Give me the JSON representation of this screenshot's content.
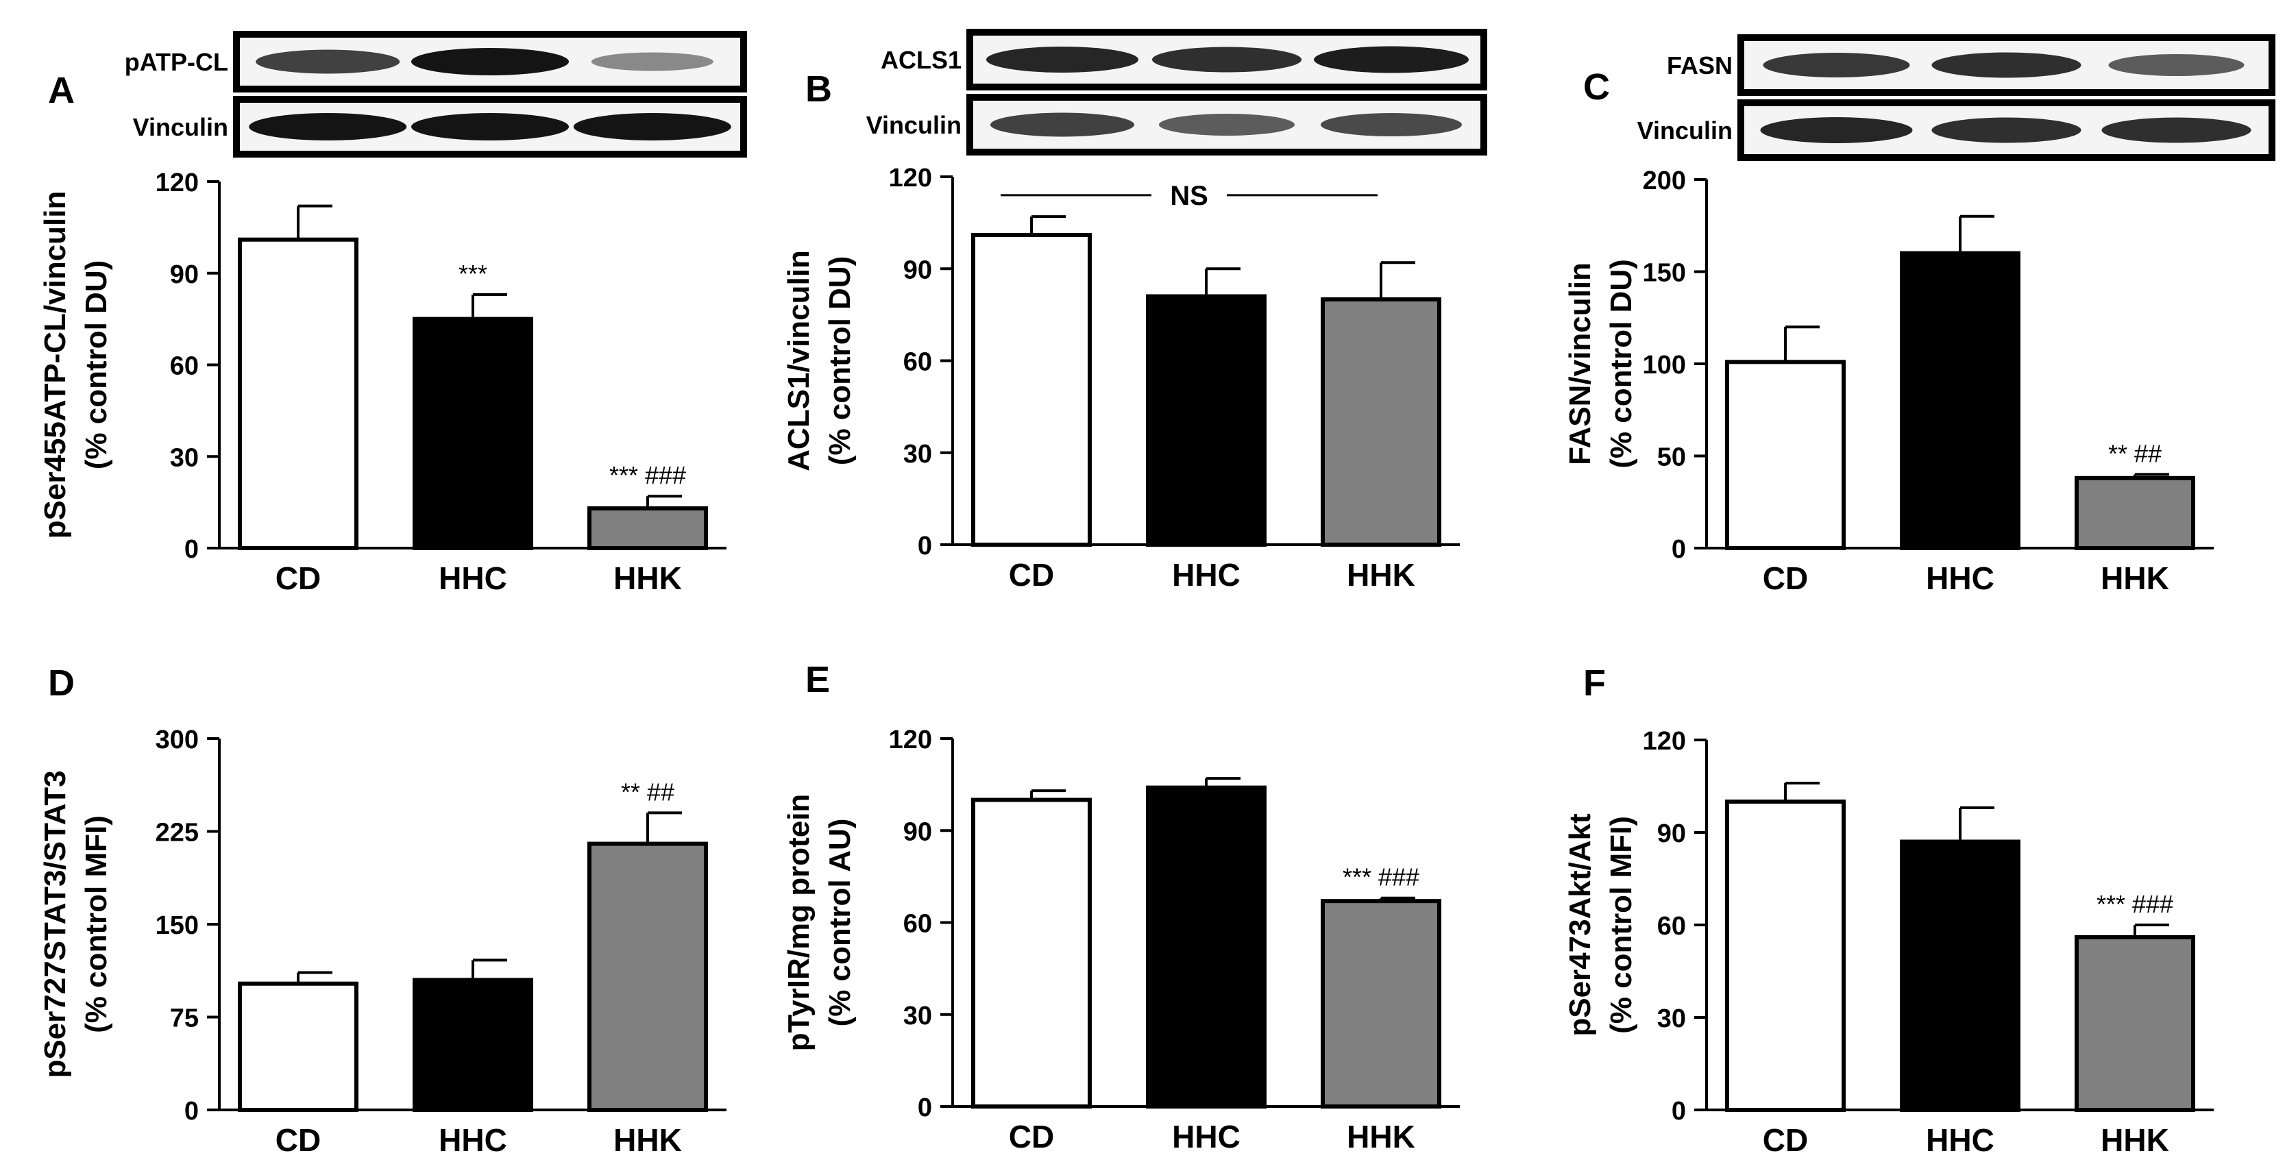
{
  "colors": {
    "CD": "#ffffff",
    "HHC": "#000000",
    "HHK": "#808080",
    "axis": "#000000"
  },
  "chart_data": [
    {
      "panel": "A",
      "type": "bar",
      "categories": [
        "CD",
        "HHC",
        "HHK"
      ],
      "values": [
        101,
        75,
        13
      ],
      "errors": [
        11,
        8,
        4
      ],
      "annotations": [
        "",
        "***",
        "*** ###"
      ],
      "ylabel_lines": [
        "pSer455ATP-CL/vinculin",
        "(% control DU)"
      ],
      "yticks": [
        0,
        30,
        60,
        90,
        120
      ],
      "ylim": [
        0,
        120
      ],
      "blots": [
        {
          "label": "pATP-CL",
          "bands": [
            0.75,
            1.0,
            0.35
          ]
        },
        {
          "label": "Vinculin",
          "bands": [
            1.0,
            1.0,
            1.0
          ]
        }
      ]
    },
    {
      "panel": "B",
      "type": "bar",
      "categories": [
        "CD",
        "HHC",
        "HHK"
      ],
      "values": [
        101,
        81,
        80
      ],
      "errors": [
        6,
        9,
        12
      ],
      "annotations": [
        "",
        "",
        ""
      ],
      "bracket": "NS",
      "ylabel_lines": [
        "ACLS1/vinculin",
        "(% control DU)"
      ],
      "yticks": [
        0,
        30,
        60,
        90,
        120
      ],
      "ylim": [
        0,
        120
      ],
      "blots": [
        {
          "label": "ACLS1",
          "bands": [
            0.9,
            0.85,
            0.95
          ]
        },
        {
          "label": "Vinculin",
          "bands": [
            0.75,
            0.6,
            0.7
          ]
        }
      ]
    },
    {
      "panel": "C",
      "type": "bar",
      "categories": [
        "CD",
        "HHC",
        "HHK"
      ],
      "values": [
        101,
        160,
        38
      ],
      "errors": [
        19,
        20,
        2
      ],
      "annotations": [
        "",
        "",
        "** ##"
      ],
      "ylabel_lines": [
        "FASN/vinculin",
        "(% control DU)"
      ],
      "yticks": [
        0,
        50,
        100,
        150,
        200
      ],
      "ylim": [
        0,
        200
      ],
      "blots": [
        {
          "label": "FASN",
          "bands": [
            0.8,
            0.85,
            0.6
          ]
        },
        {
          "label": "Vinculin",
          "bands": [
            0.9,
            0.85,
            0.85
          ]
        }
      ]
    },
    {
      "panel": "D",
      "type": "bar",
      "categories": [
        "CD",
        "HHC",
        "HHK"
      ],
      "values": [
        102,
        105,
        215
      ],
      "errors": [
        9,
        16,
        25
      ],
      "annotations": [
        "",
        "",
        "** ##"
      ],
      "ylabel_lines": [
        "pSer727STAT3/STAT3",
        "(% control MFI)"
      ],
      "yticks": [
        0,
        75,
        150,
        225,
        300
      ],
      "ylim": [
        0,
        300
      ],
      "blots": []
    },
    {
      "panel": "E",
      "type": "bar",
      "categories": [
        "CD",
        "HHC",
        "HHK"
      ],
      "values": [
        100,
        104,
        67
      ],
      "errors": [
        3,
        3,
        1
      ],
      "annotations": [
        "",
        "",
        "*** ###"
      ],
      "ylabel_lines": [
        "pTyrIR/mg protein",
        "(% control AU)"
      ],
      "yticks": [
        0,
        30,
        60,
        90,
        120
      ],
      "ylim": [
        0,
        120
      ],
      "blots": []
    },
    {
      "panel": "F",
      "type": "bar",
      "categories": [
        "CD",
        "HHC",
        "HHK"
      ],
      "values": [
        100,
        87,
        56
      ],
      "errors": [
        6,
        11,
        4
      ],
      "annotations": [
        "",
        "",
        "*** ###"
      ],
      "ylabel_lines": [
        "pSer473Akt/Akt",
        "(% control MFI)"
      ],
      "yticks": [
        0,
        30,
        60,
        90,
        120
      ],
      "ylim": [
        0,
        120
      ],
      "blots": []
    }
  ]
}
